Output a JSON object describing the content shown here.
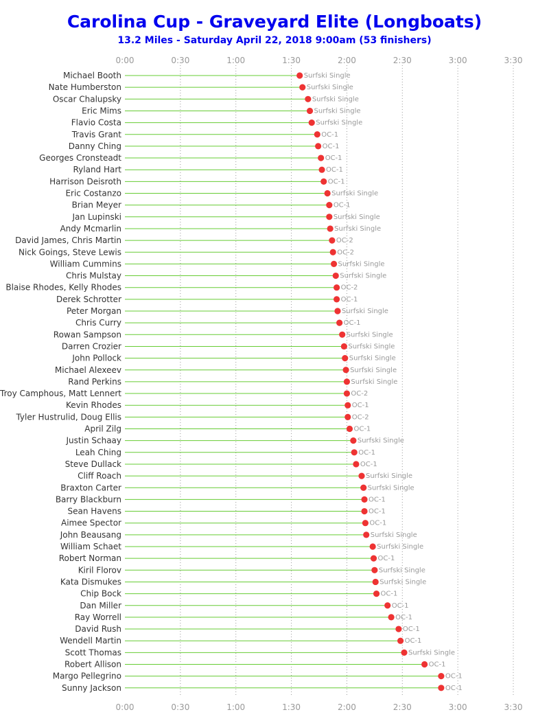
{
  "chart_data": {
    "type": "lollipop",
    "title": "Carolina Cup - Graveyard Elite (Longboats)",
    "subtitle": "13.2 Miles - Saturday April 22, 2018 9:00am (53 finishers)",
    "x_ticks": [
      "0:00",
      "0:30",
      "1:00",
      "1:30",
      "2:00",
      "2:30",
      "3:00",
      "3:30"
    ],
    "xlim_minutes": [
      0,
      210
    ],
    "grid": "vertical dotted",
    "series_color": "#ee3333",
    "stem_color": "#66cc33",
    "finishers": [
      {
        "name": "Michael Booth",
        "time_minutes": 94.5,
        "class": "Surfski Single"
      },
      {
        "name": "Nate Humberston",
        "time_minutes": 96.0,
        "class": "Surfski Single"
      },
      {
        "name": "Oscar Chalupsky",
        "time_minutes": 99.0,
        "class": "Surfski Single"
      },
      {
        "name": "Eric Mims",
        "time_minutes": 100.0,
        "class": "Surfski Single"
      },
      {
        "name": "Flavio Costa",
        "time_minutes": 101.0,
        "class": "Surfski Single"
      },
      {
        "name": "Travis Grant",
        "time_minutes": 104.0,
        "class": "OC-1"
      },
      {
        "name": "Danny Ching",
        "time_minutes": 104.5,
        "class": "OC-1"
      },
      {
        "name": "Georges Cronsteadt",
        "time_minutes": 106.0,
        "class": "OC-1"
      },
      {
        "name": "Ryland Hart",
        "time_minutes": 106.5,
        "class": "OC-1"
      },
      {
        "name": "Harrison Deisroth",
        "time_minutes": 107.5,
        "class": "OC-1"
      },
      {
        "name": "Eric Costanzo",
        "time_minutes": 109.5,
        "class": "Surfski Single"
      },
      {
        "name": "Brian Meyer",
        "time_minutes": 110.5,
        "class": "OC-1"
      },
      {
        "name": "Jan Lupinski",
        "time_minutes": 110.5,
        "class": "Surfski Single"
      },
      {
        "name": "Andy Mcmarlin",
        "time_minutes": 111.0,
        "class": "Surfski Single"
      },
      {
        "name": "David James, Chris Martin",
        "time_minutes": 112.0,
        "class": "OC-2"
      },
      {
        "name": "Nick Goings, Steve Lewis",
        "time_minutes": 112.5,
        "class": "OC-2"
      },
      {
        "name": "William Cummins",
        "time_minutes": 113.0,
        "class": "Surfski Single"
      },
      {
        "name": "Chris Mulstay",
        "time_minutes": 114.0,
        "class": "Surfski Single"
      },
      {
        "name": "Blaise Rhodes, Kelly Rhodes",
        "time_minutes": 114.5,
        "class": "OC-2"
      },
      {
        "name": "Derek Schrotter",
        "time_minutes": 114.5,
        "class": "OC-1"
      },
      {
        "name": "Peter Morgan",
        "time_minutes": 115.0,
        "class": "Surfski Single"
      },
      {
        "name": "Chris Curry",
        "time_minutes": 116.0,
        "class": "OC-1"
      },
      {
        "name": "Rowan Sampson",
        "time_minutes": 117.5,
        "class": "Surfski Single"
      },
      {
        "name": "Darren Crozier",
        "time_minutes": 118.5,
        "class": "Surfski Single"
      },
      {
        "name": "John Pollock",
        "time_minutes": 119.0,
        "class": "Surfski Single"
      },
      {
        "name": "Michael Alexeev",
        "time_minutes": 119.5,
        "class": "Surfski Single"
      },
      {
        "name": "Rand Perkins",
        "time_minutes": 120.0,
        "class": "Surfski Single"
      },
      {
        "name": "Troy Camphous, Matt Lennert",
        "time_minutes": 120.0,
        "class": "OC-2"
      },
      {
        "name": "Kevin Rhodes",
        "time_minutes": 120.5,
        "class": "OC-1"
      },
      {
        "name": "Tyler Hustrulid, Doug Ellis",
        "time_minutes": 120.5,
        "class": "OC-2"
      },
      {
        "name": "April Zilg",
        "time_minutes": 121.5,
        "class": "OC-1"
      },
      {
        "name": "Justin Schaay",
        "time_minutes": 123.5,
        "class": "Surfski Single"
      },
      {
        "name": "Leah Ching",
        "time_minutes": 124.0,
        "class": "OC-1"
      },
      {
        "name": "Steve Dullack",
        "time_minutes": 125.0,
        "class": "OC-1"
      },
      {
        "name": "Cliff Roach",
        "time_minutes": 128.0,
        "class": "Surfski Single"
      },
      {
        "name": "Braxton Carter",
        "time_minutes": 129.0,
        "class": "Surfski Single"
      },
      {
        "name": "Barry Blackburn",
        "time_minutes": 129.5,
        "class": "OC-1"
      },
      {
        "name": "Sean Havens",
        "time_minutes": 129.5,
        "class": "OC-1"
      },
      {
        "name": "Aimee Spector",
        "time_minutes": 130.0,
        "class": "OC-1"
      },
      {
        "name": "John Beausang",
        "time_minutes": 130.5,
        "class": "Surfski Single"
      },
      {
        "name": "William Schaet",
        "time_minutes": 134.0,
        "class": "Surfski Single"
      },
      {
        "name": "Robert Norman",
        "time_minutes": 134.5,
        "class": "OC-1"
      },
      {
        "name": "Kiril Florov",
        "time_minutes": 135.0,
        "class": "Surfski Single"
      },
      {
        "name": "Kata Dismukes",
        "time_minutes": 135.5,
        "class": "Surfski Single"
      },
      {
        "name": "Chip Bock",
        "time_minutes": 136.0,
        "class": "OC-1"
      },
      {
        "name": "Dan Miller",
        "time_minutes": 142.0,
        "class": "OC-1"
      },
      {
        "name": "Ray Worrell",
        "time_minutes": 144.0,
        "class": "OC-1"
      },
      {
        "name": "David Rush",
        "time_minutes": 148.0,
        "class": "OC-1"
      },
      {
        "name": "Wendell Martin",
        "time_minutes": 149.0,
        "class": "OC-1"
      },
      {
        "name": "Scott Thomas",
        "time_minutes": 151.0,
        "class": "Surfski Single"
      },
      {
        "name": "Robert Allison",
        "time_minutes": 162.0,
        "class": "OC-1"
      },
      {
        "name": "Margo Pellegrino",
        "time_minutes": 171.0,
        "class": "OC-1"
      },
      {
        "name": "Sunny Jackson",
        "time_minutes": 171.0,
        "class": "OC-1"
      }
    ]
  }
}
